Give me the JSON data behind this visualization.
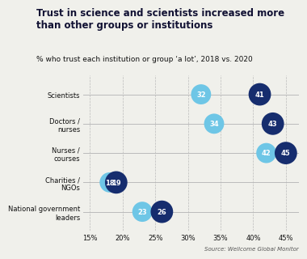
{
  "title_line1": "Trust in science and scientists increased more",
  "title_line2": "than other groups or institutions",
  "subtitle": "% who trust each institution or group ‘a lot’, 2018 vs. 2020",
  "source": "Source: Wellcome Global Monitor",
  "background_color": "#f0f0eb",
  "series": [
    {
      "label_lines": [
        "Scientists"
      ],
      "y": 4,
      "val_2018": 32,
      "val_2020": 41
    },
    {
      "label_lines": [
        "Doctors /",
        "nurses"
      ],
      "y": 3,
      "val_2018": 34,
      "val_2020": 43
    },
    {
      "label_lines": [
        "Nurses /",
        "courses"
      ],
      "y": 2,
      "val_2018": 42,
      "val_2020": 45
    },
    {
      "label_lines": [
        "Charities /",
        "NGOs"
      ],
      "y": 1,
      "val_2018": 18,
      "val_2020": 19
    },
    {
      "label_lines": [
        "National government",
        "leaders"
      ],
      "y": 0,
      "val_2018": 23,
      "val_2020": 26
    }
  ],
  "color_2018": "#6ec6e6",
  "color_2020": "#162d6e",
  "xlim": [
    0.14,
    0.47
  ],
  "xticks": [
    0.15,
    0.2,
    0.25,
    0.3,
    0.35,
    0.4,
    0.45
  ],
  "xtick_labels": [
    "15%",
    "20%",
    "25%",
    "30%",
    "35%",
    "40%",
    "45%"
  ],
  "dot_size_2018": 320,
  "dot_size_2020": 400,
  "title_fontsize": 8.5,
  "subtitle_fontsize": 6.5,
  "label_fontsize": 6.0,
  "tick_fontsize": 6.0,
  "source_fontsize": 5.0,
  "grid_color": "#bbbbbb",
  "text_color": "#111111",
  "title_color": "#111133"
}
